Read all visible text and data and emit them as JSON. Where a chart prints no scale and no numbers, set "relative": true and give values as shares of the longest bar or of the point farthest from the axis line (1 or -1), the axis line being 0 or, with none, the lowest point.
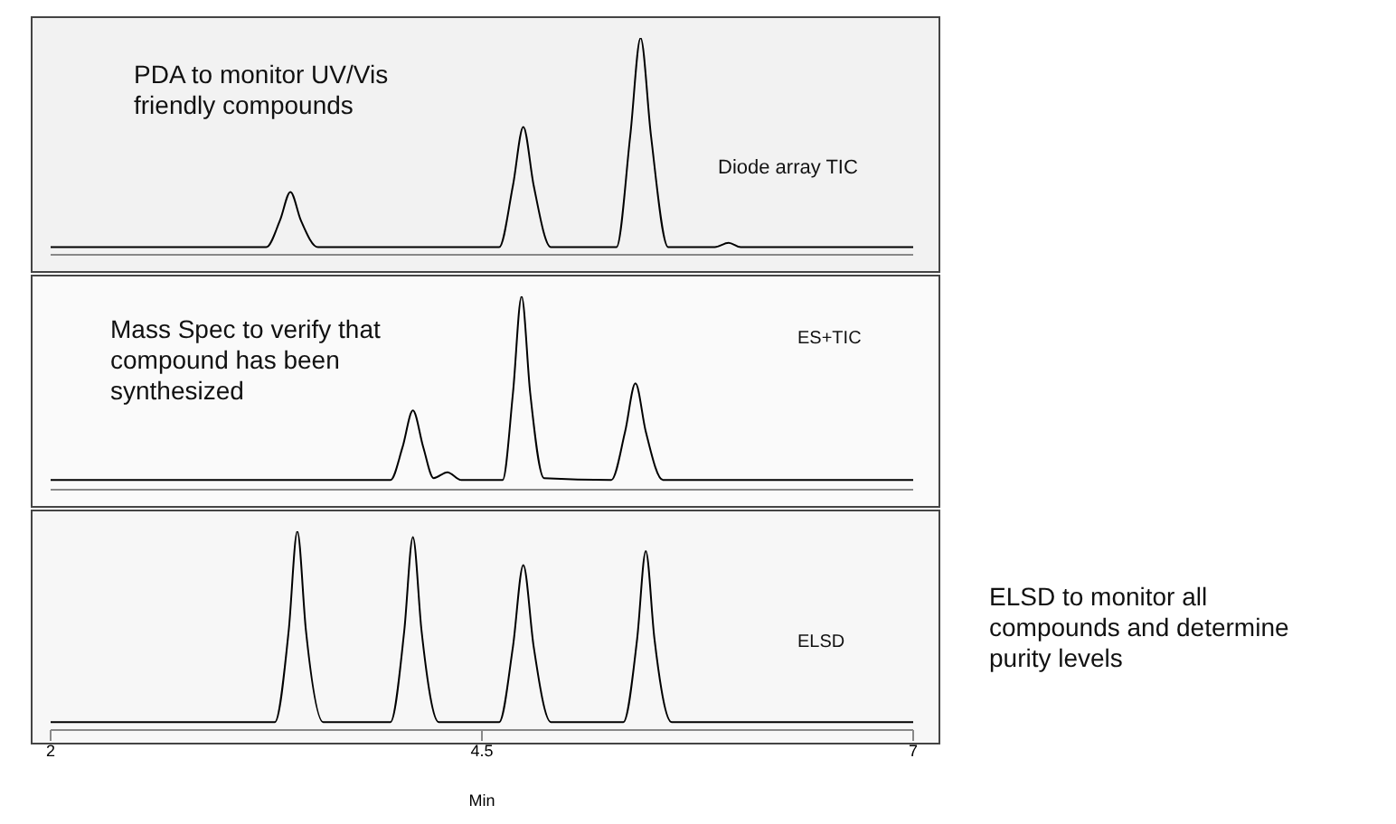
{
  "chart_data": [
    {
      "type": "line",
      "relative": true,
      "xlim": [
        2,
        7
      ],
      "xticks": [
        2,
        4.5,
        7
      ],
      "tick_labels": false,
      "marker": "none",
      "line_style": "solid",
      "annotations": [
        "PDA to monitor UV/Vis friendly compounds",
        "Diode array TIC"
      ],
      "series": [
        {
          "color": "#000000",
          "x": [
            2,
            3.25,
            3.33,
            3.39,
            3.45,
            3.55,
            4.6,
            4.68,
            4.74,
            4.8,
            4.9,
            5.28,
            5.36,
            5.42,
            5.48,
            5.58,
            5.85,
            5.93,
            6.0,
            7
          ],
          "values": [
            0.035,
            0.035,
            0.16,
            0.29,
            0.16,
            0.035,
            0.035,
            0.32,
            0.59,
            0.32,
            0.035,
            0.035,
            0.55,
            1,
            0.55,
            0.035,
            0.035,
            0.055,
            0.035,
            0.035
          ]
        }
      ]
    },
    {
      "type": "line",
      "relative": true,
      "xlim": [
        2,
        7
      ],
      "xticks": [
        2,
        4.5,
        7
      ],
      "tick_labels": false,
      "marker": "none",
      "line_style": "solid",
      "annotations": [
        "Mass Spec to verify that compound has been synthesized",
        "ES+TIC"
      ],
      "series": [
        {
          "color": "#000000",
          "x": [
            2,
            3.97,
            4.04,
            4.1,
            4.16,
            4.22,
            4.3,
            4.38,
            4.62,
            4.68,
            4.73,
            4.78,
            4.86,
            5.25,
            5.33,
            5.39,
            5.45,
            5.55,
            7
          ],
          "values": [
            0.05,
            0.05,
            0.22,
            0.41,
            0.22,
            0.06,
            0.09,
            0.05,
            0.05,
            0.5,
            1,
            0.5,
            0.06,
            0.05,
            0.3,
            0.55,
            0.3,
            0.05,
            0.05
          ]
        }
      ]
    },
    {
      "type": "line",
      "relative": true,
      "xlim": [
        2,
        7
      ],
      "xticks": [
        2,
        4.5,
        7
      ],
      "xlabel": "Min",
      "tick_labels": "x",
      "marker": "none",
      "line_style": "solid",
      "annotations": [
        "ELSD",
        "ELSD to monitor all compounds and determine purity levels"
      ],
      "series": [
        {
          "color": "#000000",
          "x": [
            2,
            3.3,
            3.38,
            3.43,
            3.48,
            3.58,
            3.97,
            4.05,
            4.1,
            4.15,
            4.25,
            4.6,
            4.68,
            4.74,
            4.8,
            4.9,
            5.32,
            5.4,
            5.45,
            5.5,
            5.6,
            7
          ],
          "values": [
            0.04,
            0.04,
            0.5,
            1,
            0.5,
            0.04,
            0.04,
            0.5,
            0.97,
            0.5,
            0.04,
            0.04,
            0.42,
            0.83,
            0.42,
            0.04,
            0.04,
            0.46,
            0.9,
            0.46,
            0.04,
            0.04
          ]
        }
      ]
    }
  ]
}
